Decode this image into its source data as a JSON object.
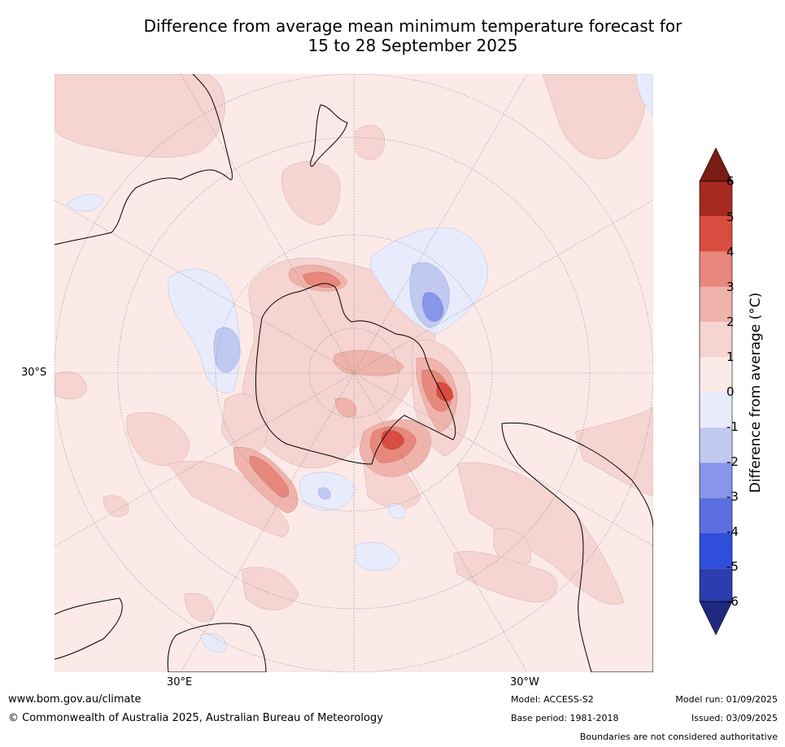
{
  "title_line1": "Difference from average mean minimum temperature forecast for",
  "title_line2": "15 to 28 September 2025",
  "map": {
    "projection": "south-polar-stereographic",
    "lat_label": "30°S",
    "lon_labels": [
      "30°E",
      "30°W"
    ],
    "colors": {
      "ocean_background": "#fbeae8",
      "land_outline": "#000000",
      "boundary_outline": "#808080",
      "graticule": "#888888"
    }
  },
  "colorbar": {
    "label": "Difference from average (°C)",
    "ticks": [
      "6",
      "5",
      "4",
      "3",
      "2",
      "1",
      "0",
      "-1",
      "-2",
      "-3",
      "-4",
      "-5",
      "-6"
    ],
    "bins": [
      {
        "range": [
          6,
          7
        ],
        "color": "#7a1c14"
      },
      {
        "range": [
          5,
          6
        ],
        "color": "#a72a20"
      },
      {
        "range": [
          4,
          5
        ],
        "color": "#d94d40"
      },
      {
        "range": [
          3,
          4
        ],
        "color": "#e8877c"
      },
      {
        "range": [
          2,
          3
        ],
        "color": "#efb3ab"
      },
      {
        "range": [
          1,
          2
        ],
        "color": "#f5d4d1"
      },
      {
        "range": [
          0,
          1
        ],
        "color": "#fbeae8"
      },
      {
        "range": [
          -1,
          0
        ],
        "color": "#e8ebfb"
      },
      {
        "range": [
          -2,
          -1
        ],
        "color": "#c2c9f1"
      },
      {
        "range": [
          -3,
          -2
        ],
        "color": "#8795ea"
      },
      {
        "range": [
          -4,
          -3
        ],
        "color": "#5c6fe1"
      },
      {
        "range": [
          -5,
          -4
        ],
        "color": "#2f4edc"
      },
      {
        "range": [
          -6,
          -5
        ],
        "color": "#2a3eb0"
      },
      {
        "range": [
          -7,
          -6
        ],
        "color": "#1f2a7f"
      }
    ]
  },
  "footer": {
    "website": "www.bom.gov.au/climate",
    "copyright": "© Commonwealth of Australia 2025, Australian Bureau of Meteorology",
    "model": "Model: ACCESS-S2",
    "base_period": "Base period: 1981-2018",
    "model_run": "Model run: 01/09/2025",
    "issued": "Issued: 03/09/2025",
    "disclaimer": "Boundaries are not considered authoritative"
  }
}
